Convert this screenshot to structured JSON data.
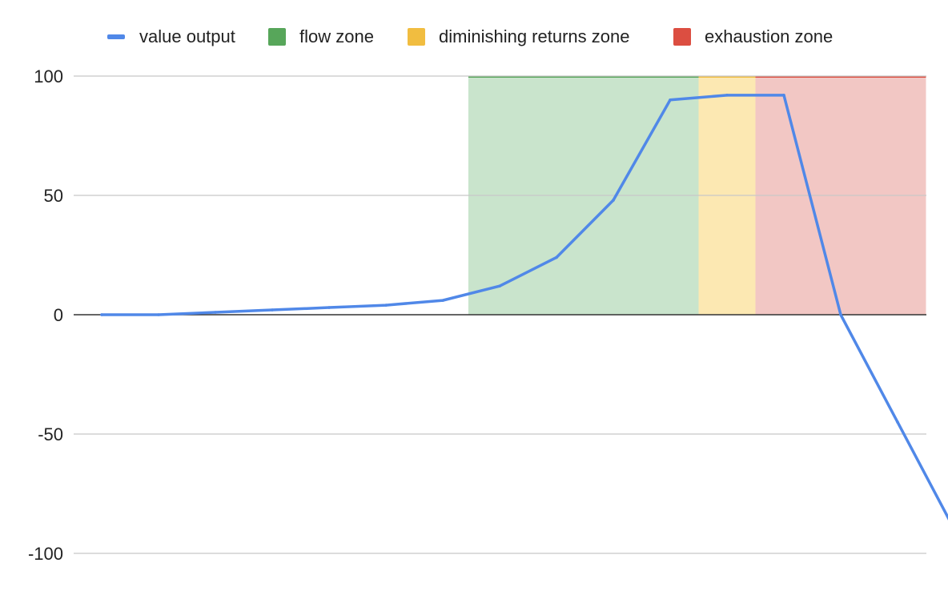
{
  "legend": {
    "line_label": "value output",
    "zones": [
      {
        "label": "flow zone",
        "color": "#57a65a"
      },
      {
        "label": "diminishing returns zone",
        "color": "#f1bd40"
      },
      {
        "label": "exhaustion zone",
        "color": "#dc4e41"
      }
    ]
  },
  "chart_data": {
    "type": "line",
    "title": "",
    "xlabel": "",
    "ylabel": "",
    "ylim": [
      -100,
      100
    ],
    "yticks": [
      100,
      50,
      0,
      -50,
      -100
    ],
    "grid": true,
    "legend_position": "top",
    "series": [
      {
        "name": "value output",
        "color": "#5088e8",
        "x": [
          1,
          2,
          3,
          4,
          5,
          6,
          7,
          8,
          9,
          10,
          11,
          12,
          13,
          14,
          15,
          16
        ],
        "values": [
          0,
          0,
          1,
          2,
          3,
          4,
          6,
          12,
          24,
          48,
          90,
          92,
          92,
          0,
          -45,
          -90
        ]
      }
    ],
    "zones": [
      {
        "name": "flow zone",
        "x_start": 7.45,
        "x_end": 11.5,
        "value": 100,
        "color": "#57a65a",
        "fill": "#c9e4cc"
      },
      {
        "name": "diminishing returns zone",
        "x_start": 11.5,
        "x_end": 12.5,
        "value": 100,
        "color": "#f1bd40",
        "fill": "#fce8b2"
      },
      {
        "name": "exhaustion zone",
        "x_start": 12.5,
        "x_end": 15.5,
        "value": 100,
        "color": "#dc4e41",
        "fill": "#f2c7c4"
      }
    ]
  }
}
